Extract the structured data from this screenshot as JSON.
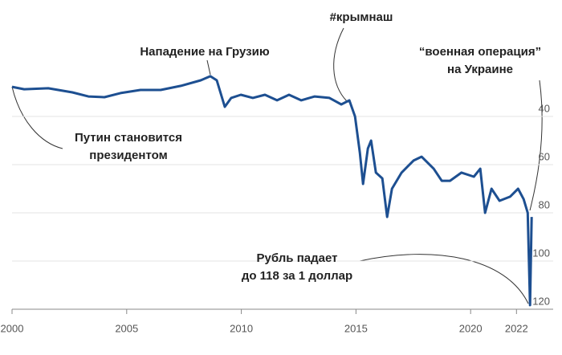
{
  "chart_data": {
    "type": "line",
    "color": "#1d4f91",
    "y_inverted": true,
    "grid": true,
    "x": [
      2000.0,
      2000.53,
      2001.58,
      2002.63,
      2003.33,
      2004.03,
      2004.73,
      2005.6,
      2006.48,
      2007.36,
      2008.23,
      2008.65,
      2008.93,
      2009.28,
      2009.56,
      2009.98,
      2010.5,
      2011.03,
      2011.56,
      2012.08,
      2012.61,
      2013.2,
      2013.84,
      2014.36,
      2014.71,
      2014.96,
      2015.17,
      2015.31,
      2015.52,
      2015.66,
      2015.87,
      2016.15,
      2016.36,
      2016.57,
      2016.99,
      2017.51,
      2017.86,
      2018.39,
      2018.74,
      2019.1,
      2019.6,
      2020.14,
      2020.42,
      2020.63,
      2020.91,
      2021.26,
      2021.72,
      2022.07,
      2022.31,
      2022.49,
      2022.59,
      2022.66
    ],
    "values": [
      27.7,
      28.7,
      28.3,
      30,
      31.7,
      32,
      30.3,
      29,
      29,
      27.3,
      25,
      23.3,
      25,
      36,
      32.3,
      31,
      32.3,
      31,
      33.3,
      31,
      33.3,
      31.7,
      32.3,
      35,
      33.3,
      40,
      55,
      68,
      53.3,
      50,
      63.3,
      65.7,
      81.7,
      70,
      63.3,
      58.3,
      56.7,
      61.7,
      66.7,
      66.7,
      63.3,
      65,
      61.7,
      80,
      70,
      75,
      73.3,
      70,
      74.3,
      80,
      118.3,
      81.7
    ],
    "xlim": [
      2000,
      2023.6
    ],
    "xticks": [
      2000,
      2005,
      2010,
      2015,
      2020,
      2022
    ],
    "ylim": [
      20,
      122
    ],
    "yticks": [
      40,
      60,
      80,
      100,
      120
    ],
    "annotations": [
      {
        "lines": [
          "Путин становится",
          "президентом"
        ]
      },
      {
        "lines": [
          "Нападение на Грузию"
        ]
      },
      {
        "lines": [
          "#крымнаш"
        ]
      },
      {
        "lines": [
          "“военная операция”",
          "на Украине"
        ]
      },
      {
        "lines": [
          "Рубль падает",
          "до 118 за 1 доллар"
        ]
      }
    ]
  }
}
